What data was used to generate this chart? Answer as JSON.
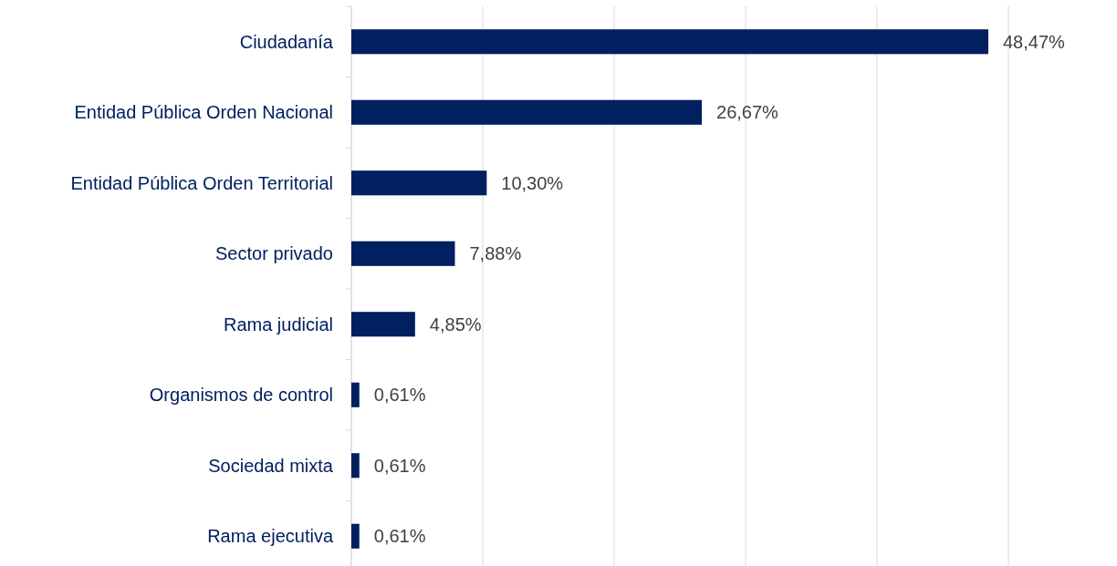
{
  "chart_data": {
    "type": "bar",
    "orientation": "horizontal",
    "categories": [
      "Ciudadanía",
      "Entidad Pública Orden Nacional",
      "Entidad Pública Orden Territorial",
      "Sector privado",
      "Rama judicial",
      "Organismos de control",
      "Sociedad mixta",
      "Rama ejecutiva"
    ],
    "values": [
      48.47,
      26.67,
      10.3,
      7.88,
      4.85,
      0.61,
      0.61,
      0.61
    ],
    "value_labels": [
      "48,47%",
      "26,67%",
      "10,30%",
      "7,88%",
      "4,85%",
      "0,61%",
      "0,61%",
      "0,61%"
    ],
    "color": "#002060",
    "xlim": [
      0,
      50
    ],
    "xticks": [
      {
        "value": 0,
        "label": null
      },
      {
        "value": 10,
        "label": null
      },
      {
        "value": 20,
        "label": null
      },
      {
        "value": 30,
        "label": null
      },
      {
        "value": 40,
        "label": null
      },
      {
        "value": 50,
        "label": null
      }
    ],
    "grid": "x",
    "tick_labels": "y"
  }
}
